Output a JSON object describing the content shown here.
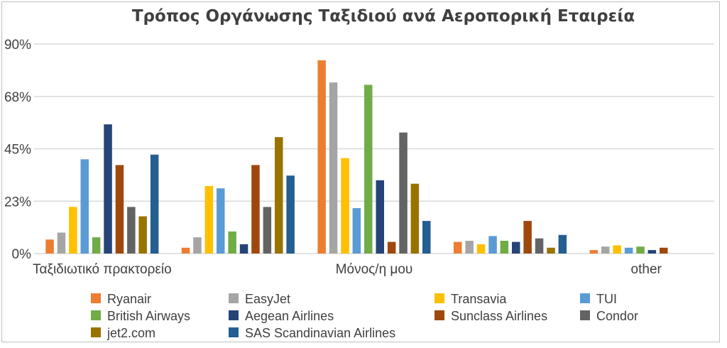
{
  "chart_data": {
    "type": "bar",
    "title": "Τρόπος Οργάνωσης Ταξιδιού ανά Αεροπορική Εταιρεία",
    "xlabel": "",
    "ylabel": "",
    "categories": [
      "Ταξιδιωτικό πρακτορείο",
      "",
      "Μόνος/η μου",
      "",
      "other"
    ],
    "y_ticks": [
      "0%",
      "23%",
      "45%",
      "68%",
      "90%"
    ],
    "ylim": [
      0,
      90
    ],
    "unit": "%",
    "grid": true,
    "legend_position": "bottom",
    "series": [
      {
        "name": "Ryanair",
        "color": "#ED7D31",
        "values": [
          6,
          2.5,
          83,
          5,
          1.5
        ]
      },
      {
        "name": "EasyJet",
        "color": "#A5A5A5",
        "values": [
          9,
          7,
          73.5,
          5.5,
          3
        ]
      },
      {
        "name": "Transavia",
        "color": "#FFC000",
        "values": [
          20,
          29,
          41,
          4,
          3.5
        ]
      },
      {
        "name": "TUI",
        "color": "#5B9BD5",
        "values": [
          40.5,
          28,
          19.5,
          7.5,
          2.5
        ]
      },
      {
        "name": "British Airways",
        "color": "#70AD47",
        "values": [
          7,
          9.5,
          72.5,
          5.5,
          3
        ]
      },
      {
        "name": "Aegean Airlines",
        "color": "#264478",
        "values": [
          55.5,
          4,
          31.5,
          5,
          1.5
        ]
      },
      {
        "name": "Sunclass Airlines",
        "color": "#9E480E",
        "values": [
          38,
          38,
          5,
          14,
          2.5
        ]
      },
      {
        "name": "Condor",
        "color": "#636363",
        "values": [
          20,
          20,
          52,
          6.5,
          0
        ]
      },
      {
        "name": "jet2.com",
        "color": "#997300",
        "values": [
          16,
          50,
          30,
          2.5,
          0
        ]
      },
      {
        "name": "SAS Scandinavian Airlines",
        "color": "#255E91",
        "values": [
          42.5,
          33.5,
          14,
          8,
          0
        ]
      }
    ]
  }
}
